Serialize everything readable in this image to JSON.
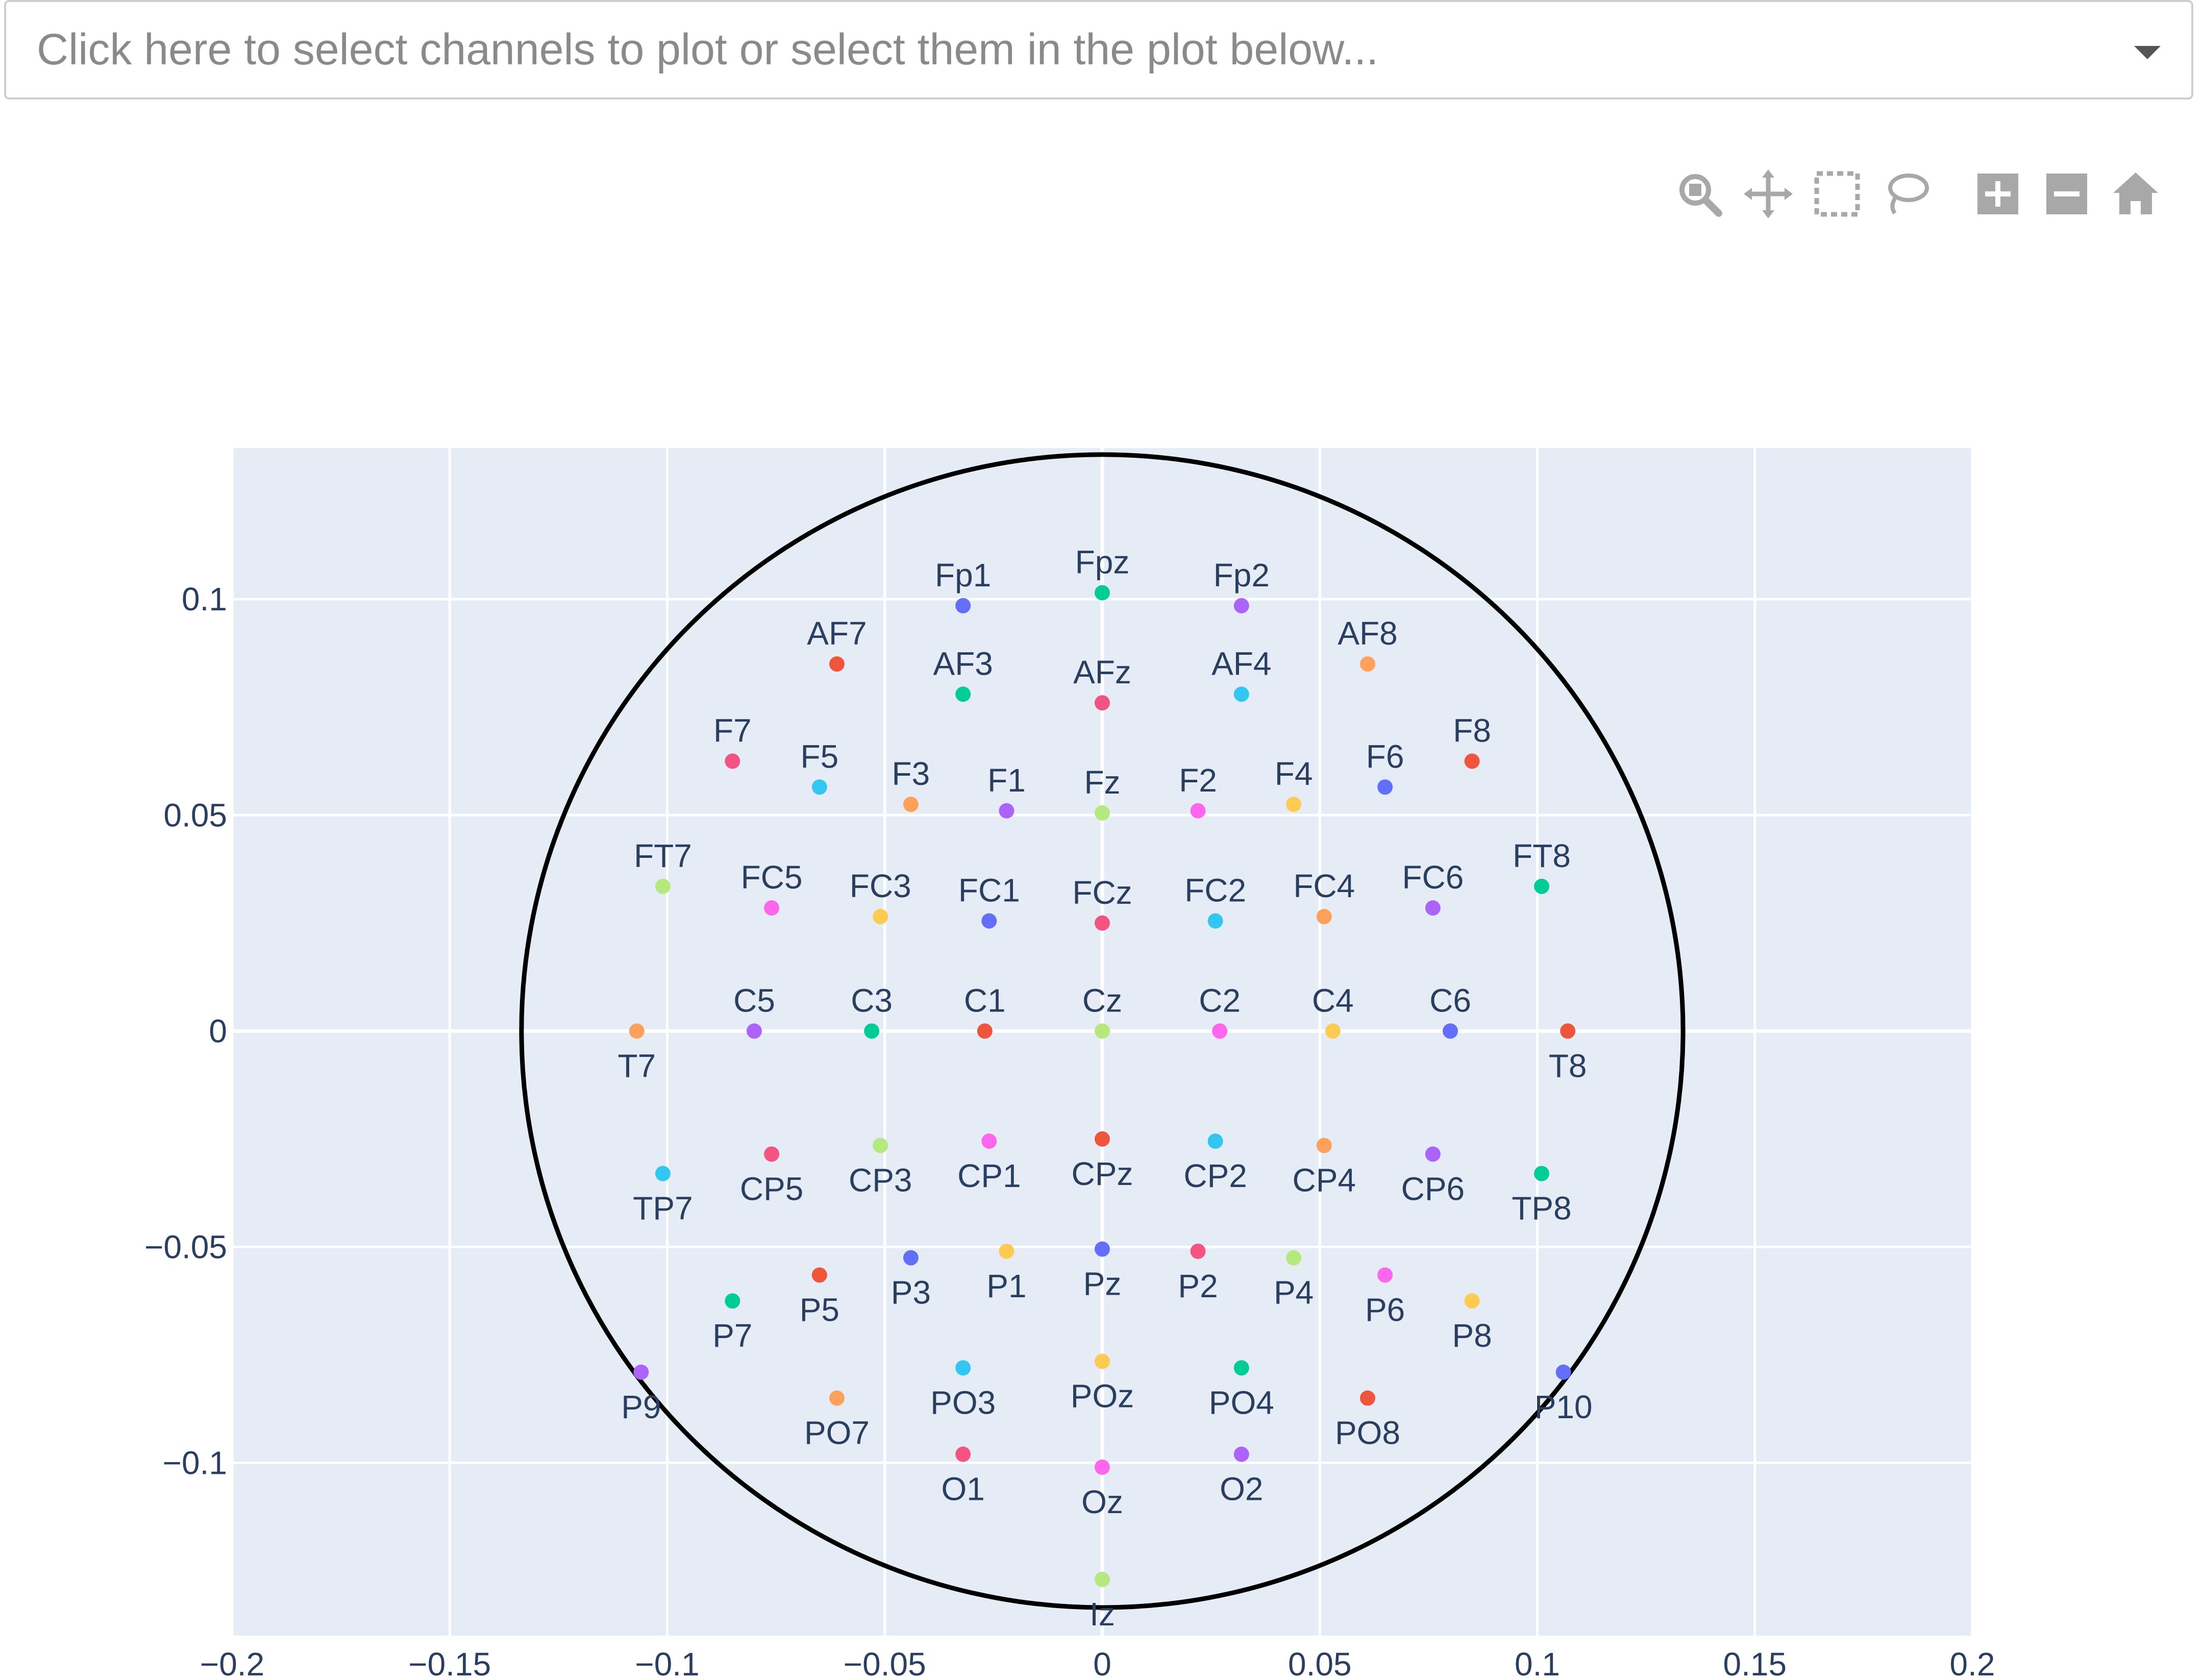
{
  "dropdown": {
    "placeholder": "Click here to select channels to plot or select them in the plot below..."
  },
  "modebar": [
    "zoom-icon",
    "pan-icon",
    "box-select-icon",
    "lasso-select-icon",
    "zoom-in-icon",
    "zoom-out-icon",
    "reset-axes-home-icon"
  ],
  "colors": {
    "plot_bg": "#e5ecf6",
    "grid": "#ffffff",
    "circle": "#000000",
    "text": "#2a3f5f"
  },
  "chart_data": {
    "type": "scatter",
    "title": "",
    "xlabel": "",
    "ylabel": "",
    "xlim": [
      -0.2,
      0.2
    ],
    "ylim": [
      -0.14,
      0.135
    ],
    "xticks": [
      -0.2,
      -0.15,
      -0.1,
      -0.05,
      0,
      0.05,
      0.1,
      0.15,
      0.2
    ],
    "xtick_labels": [
      "−0.2",
      "−0.15",
      "−0.1",
      "−0.05",
      "0",
      "0.05",
      "0.1",
      "0.15",
      "0.2"
    ],
    "yticks": [
      0.1,
      0.05,
      0,
      -0.05,
      -0.1
    ],
    "ytick_labels": [
      "0.1",
      "0.05",
      "0",
      "−0.05",
      "−0.1"
    ],
    "grid": true,
    "head_outline": {
      "center": [
        0,
        0
      ],
      "radius": 0.1335
    },
    "points": [
      {
        "name": "Fp1",
        "x": -0.032,
        "y": 0.0985,
        "color": "#636efa",
        "label_pos": "above"
      },
      {
        "name": "Fpz",
        "x": 0.0,
        "y": 0.1015,
        "color": "#00cc96",
        "label_pos": "above"
      },
      {
        "name": "Fp2",
        "x": 0.032,
        "y": 0.0985,
        "color": "#ab63fa",
        "label_pos": "above"
      },
      {
        "name": "AF7",
        "x": -0.061,
        "y": 0.085,
        "color": "#ef553b",
        "label_pos": "above"
      },
      {
        "name": "AF3",
        "x": -0.032,
        "y": 0.078,
        "color": "#00cc96",
        "label_pos": "above"
      },
      {
        "name": "AFz",
        "x": 0.0,
        "y": 0.076,
        "color": "#ef5584",
        "label_pos": "above"
      },
      {
        "name": "AF4",
        "x": 0.032,
        "y": 0.078,
        "color": "#33c6f0",
        "label_pos": "above"
      },
      {
        "name": "AF8",
        "x": 0.061,
        "y": 0.085,
        "color": "#ffa15a",
        "label_pos": "above"
      },
      {
        "name": "F7",
        "x": -0.085,
        "y": 0.0625,
        "color": "#f2557f",
        "label_pos": "above"
      },
      {
        "name": "F5",
        "x": -0.065,
        "y": 0.0565,
        "color": "#33c6f0",
        "label_pos": "above"
      },
      {
        "name": "F3",
        "x": -0.044,
        "y": 0.0525,
        "color": "#ffa15a",
        "label_pos": "above"
      },
      {
        "name": "F1",
        "x": -0.022,
        "y": 0.051,
        "color": "#ab63fa",
        "label_pos": "above"
      },
      {
        "name": "Fz",
        "x": 0.0,
        "y": 0.0505,
        "color": "#b6e880",
        "label_pos": "above"
      },
      {
        "name": "F2",
        "x": 0.022,
        "y": 0.051,
        "color": "#ff66ee",
        "label_pos": "above"
      },
      {
        "name": "F4",
        "x": 0.044,
        "y": 0.0525,
        "color": "#fecb52",
        "label_pos": "above"
      },
      {
        "name": "F6",
        "x": 0.065,
        "y": 0.0565,
        "color": "#636efa",
        "label_pos": "above"
      },
      {
        "name": "F8",
        "x": 0.085,
        "y": 0.0625,
        "color": "#ef553b",
        "label_pos": "above"
      },
      {
        "name": "FT7",
        "x": -0.101,
        "y": 0.0335,
        "color": "#b6e880",
        "label_pos": "above"
      },
      {
        "name": "FC5",
        "x": -0.076,
        "y": 0.0285,
        "color": "#ff66ee",
        "label_pos": "above"
      },
      {
        "name": "FC3",
        "x": -0.051,
        "y": 0.0265,
        "color": "#fecb52",
        "label_pos": "above"
      },
      {
        "name": "FC1",
        "x": -0.026,
        "y": 0.0255,
        "color": "#636efa",
        "label_pos": "above"
      },
      {
        "name": "FCz",
        "x": 0.0,
        "y": 0.025,
        "color": "#f2557f",
        "label_pos": "above"
      },
      {
        "name": "FC2",
        "x": 0.026,
        "y": 0.0255,
        "color": "#33c6f0",
        "label_pos": "above"
      },
      {
        "name": "FC4",
        "x": 0.051,
        "y": 0.0265,
        "color": "#ffa15a",
        "label_pos": "above"
      },
      {
        "name": "FC6",
        "x": 0.076,
        "y": 0.0285,
        "color": "#ab63fa",
        "label_pos": "above"
      },
      {
        "name": "FT8",
        "x": 0.101,
        "y": 0.0335,
        "color": "#00cc96",
        "label_pos": "above"
      },
      {
        "name": "T7",
        "x": -0.107,
        "y": 0.0,
        "color": "#ffa15a",
        "label_pos": "below"
      },
      {
        "name": "C5",
        "x": -0.08,
        "y": 0.0,
        "color": "#ab63fa",
        "label_pos": "above"
      },
      {
        "name": "C3",
        "x": -0.053,
        "y": 0.0,
        "color": "#00cc96",
        "label_pos": "above"
      },
      {
        "name": "C1",
        "x": -0.027,
        "y": 0.0,
        "color": "#ef553b",
        "label_pos": "above"
      },
      {
        "name": "Cz",
        "x": 0.0,
        "y": 0.0,
        "color": "#b6e880",
        "label_pos": "above"
      },
      {
        "name": "C2",
        "x": 0.027,
        "y": 0.0,
        "color": "#ff66ee",
        "label_pos": "above"
      },
      {
        "name": "C4",
        "x": 0.053,
        "y": 0.0,
        "color": "#fecb52",
        "label_pos": "above"
      },
      {
        "name": "C6",
        "x": 0.08,
        "y": 0.0,
        "color": "#636efa",
        "label_pos": "above"
      },
      {
        "name": "T8",
        "x": 0.107,
        "y": 0.0,
        "color": "#ef553b",
        "label_pos": "below"
      },
      {
        "name": "TP7",
        "x": -0.101,
        "y": -0.033,
        "color": "#33c6f0",
        "label_pos": "below"
      },
      {
        "name": "CP5",
        "x": -0.076,
        "y": -0.0285,
        "color": "#f2557f",
        "label_pos": "below"
      },
      {
        "name": "CP3",
        "x": -0.051,
        "y": -0.0265,
        "color": "#b6e880",
        "label_pos": "below"
      },
      {
        "name": "CP1",
        "x": -0.026,
        "y": -0.0255,
        "color": "#ff66ee",
        "label_pos": "below"
      },
      {
        "name": "CPz",
        "x": 0.0,
        "y": -0.025,
        "color": "#ef553b",
        "label_pos": "below"
      },
      {
        "name": "CP2",
        "x": 0.026,
        "y": -0.0255,
        "color": "#33c6f0",
        "label_pos": "below"
      },
      {
        "name": "CP4",
        "x": 0.051,
        "y": -0.0265,
        "color": "#ffa15a",
        "label_pos": "below"
      },
      {
        "name": "CP6",
        "x": 0.076,
        "y": -0.0285,
        "color": "#ab63fa",
        "label_pos": "below"
      },
      {
        "name": "TP8",
        "x": 0.101,
        "y": -0.033,
        "color": "#00cc96",
        "label_pos": "below"
      },
      {
        "name": "P7",
        "x": -0.085,
        "y": -0.0625,
        "color": "#00cc96",
        "label_pos": "below"
      },
      {
        "name": "P5",
        "x": -0.065,
        "y": -0.0565,
        "color": "#ef553b",
        "label_pos": "below"
      },
      {
        "name": "P3",
        "x": -0.044,
        "y": -0.0525,
        "color": "#636efa",
        "label_pos": "below"
      },
      {
        "name": "P1",
        "x": -0.022,
        "y": -0.051,
        "color": "#fecb52",
        "label_pos": "below"
      },
      {
        "name": "Pz",
        "x": 0.0,
        "y": -0.0505,
        "color": "#636efa",
        "label_pos": "below"
      },
      {
        "name": "P2",
        "x": 0.022,
        "y": -0.051,
        "color": "#f2557f",
        "label_pos": "below"
      },
      {
        "name": "P4",
        "x": 0.044,
        "y": -0.0525,
        "color": "#b6e880",
        "label_pos": "below"
      },
      {
        "name": "P6",
        "x": 0.065,
        "y": -0.0565,
        "color": "#ff66ee",
        "label_pos": "below"
      },
      {
        "name": "P8",
        "x": 0.085,
        "y": -0.0625,
        "color": "#fecb52",
        "label_pos": "below"
      },
      {
        "name": "P9",
        "x": -0.106,
        "y": -0.079,
        "color": "#ab63fa",
        "label_pos": "below"
      },
      {
        "name": "PO7",
        "x": -0.061,
        "y": -0.085,
        "color": "#ffa15a",
        "label_pos": "below"
      },
      {
        "name": "PO3",
        "x": -0.032,
        "y": -0.078,
        "color": "#33c6f0",
        "label_pos": "below"
      },
      {
        "name": "POz",
        "x": 0.0,
        "y": -0.0765,
        "color": "#fecb52",
        "label_pos": "below"
      },
      {
        "name": "PO4",
        "x": 0.032,
        "y": -0.078,
        "color": "#00cc96",
        "label_pos": "below"
      },
      {
        "name": "PO8",
        "x": 0.061,
        "y": -0.085,
        "color": "#ef553b",
        "label_pos": "below"
      },
      {
        "name": "P10",
        "x": 0.106,
        "y": -0.079,
        "color": "#636efa",
        "label_pos": "below"
      },
      {
        "name": "O1",
        "x": -0.032,
        "y": -0.098,
        "color": "#f2557f",
        "label_pos": "below"
      },
      {
        "name": "Oz",
        "x": 0.0,
        "y": -0.101,
        "color": "#ff66ee",
        "label_pos": "below"
      },
      {
        "name": "O2",
        "x": 0.032,
        "y": -0.098,
        "color": "#ab63fa",
        "label_pos": "below"
      },
      {
        "name": "Iz",
        "x": 0.0,
        "y": -0.127,
        "color": "#b6e880",
        "label_pos": "below"
      }
    ]
  }
}
